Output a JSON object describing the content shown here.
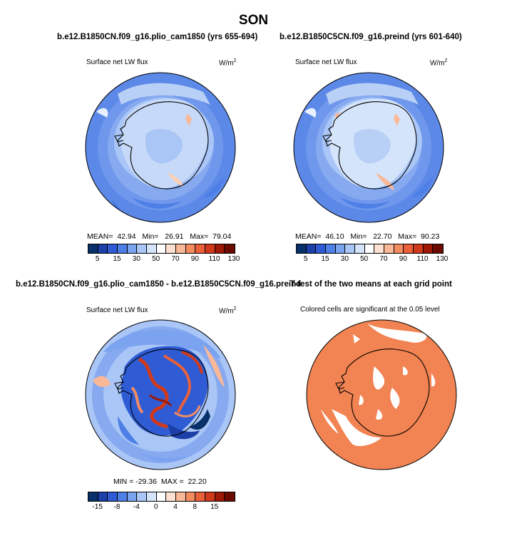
{
  "figure_title": "SON",
  "panels": [
    {
      "title": "b.e12.B1850CN.f09_g16.plio_cam1850 (yrs 655-694)",
      "variable": "Surface net LW flux",
      "units": "W/m",
      "units_sup": "2",
      "stats": {
        "mean_label": "MEAN=",
        "mean": "42.94",
        "min_label": "Min=",
        "min": "26.91",
        "max_label": "Max=",
        "max": "79.04"
      }
    },
    {
      "title": "b.e12.B1850C5CN.f09_g16.preind (yrs 601-640)",
      "variable": "Surface net LW flux",
      "units": "W/m",
      "units_sup": "2",
      "stats": {
        "mean_label": "MEAN=",
        "mean": "46.10",
        "min_label": "Min=",
        "min": "22.70",
        "max_label": "Max=",
        "max": "90.23"
      }
    },
    {
      "title": "b.e12.B1850CN.f09_g16.plio_cam1850 - b.e12.B1850C5CN.f09_g16.preind",
      "variable": "Surface net LW flux",
      "units": "W/m",
      "units_sup": "2",
      "stats_text": "MIN = -29.36  MAX =  22.20"
    },
    {
      "title": "T-test of the two means at each grid point",
      "note": "Colored cells are significant at the 0.05 level"
    }
  ],
  "colorbars": {
    "absolute": {
      "colors": [
        "#08306b",
        "#1c3fa8",
        "#2f5cd4",
        "#4d7fe6",
        "#7ca3f0",
        "#a9c6f7",
        "#d4e4fb",
        "#ffffff",
        "#fde0cf",
        "#f9b898",
        "#f48c62",
        "#e9603a",
        "#d03a1c",
        "#a01806",
        "#6b0b00"
      ],
      "ticks": [
        "5",
        "15",
        "30",
        "50",
        "70",
        "90",
        "110",
        "130"
      ]
    },
    "difference": {
      "colors": [
        "#08306b",
        "#1c3fa8",
        "#2f5cd4",
        "#4d7fe6",
        "#7ca3f0",
        "#a9c6f7",
        "#d4e4fb",
        "#ffffff",
        "#fde0cf",
        "#f9b898",
        "#f48c62",
        "#e9603a",
        "#d03a1c",
        "#a01806",
        "#6b0b00"
      ],
      "ticks": [
        "-15",
        "-8",
        "-4",
        "0",
        "4",
        "8",
        "15"
      ]
    }
  },
  "colors": {
    "ocean_blue": "#6f97ec",
    "light_blue": "#b9d0f6",
    "mid_blue": "#4d7fe6",
    "significant": "#f28352",
    "coast": "#000000"
  }
}
